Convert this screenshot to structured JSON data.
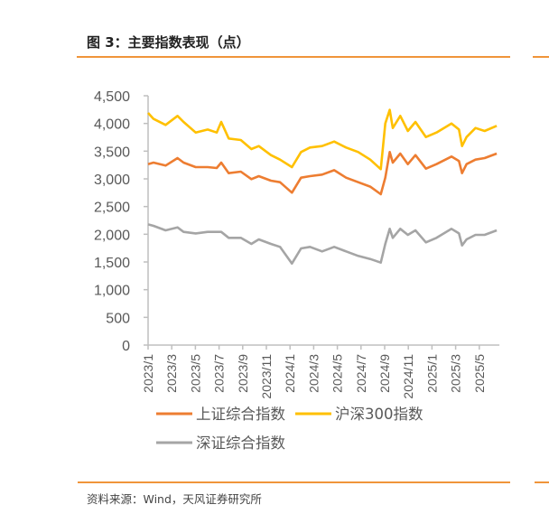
{
  "figure": {
    "title": "图 3：主要指数表现（点）",
    "source": "资料来源：Wind，天风证券研究所"
  },
  "chart_data": {
    "type": "line",
    "title": "主要指数表现（点）",
    "xlabel": "",
    "ylabel": "",
    "x_unit": "months since 2023/1",
    "ylim": [
      0,
      4500
    ],
    "yticks": [
      "0",
      "500",
      "1,000",
      "1,500",
      "2,000",
      "2,500",
      "3,000",
      "3,500",
      "4,000",
      "4,500"
    ],
    "ytick_values": [
      0,
      500,
      1000,
      1500,
      2000,
      2500,
      3000,
      3500,
      4000,
      4500
    ],
    "xticks": [
      "2023/1",
      "2023/3",
      "2023/5",
      "2023/7",
      "2023/9",
      "2023/11",
      "2024/1",
      "2024/3",
      "2024/5",
      "2024/7",
      "2024/9",
      "2024/11",
      "2025/1",
      "2025/3",
      "2025/5"
    ],
    "xtick_values": [
      0,
      2,
      4,
      6,
      8,
      10,
      12,
      14,
      16,
      18,
      20,
      22,
      24,
      26,
      28
    ],
    "xlim": [
      0,
      30
    ],
    "grid": false,
    "legend_placement": "bottom",
    "x": [
      0,
      0.46,
      1.48,
      2.49,
      3.0,
      4.02,
      5.04,
      5.8,
      6.18,
      6.82,
      7.84,
      8.73,
      9.36,
      10.38,
      11.15,
      12.16,
      12.93,
      13.69,
      14.71,
      15.73,
      16.74,
      17.76,
      18.78,
      19.67,
      20.05,
      20.43,
      20.69,
      21.32,
      21.96,
      22.6,
      23.49,
      24.38,
      25.65,
      26.28,
      26.54,
      26.92,
      27.68,
      28.45,
      29.47
    ],
    "series": [
      {
        "name": "上证综合指数",
        "color": "#ed7d31",
        "values": [
          3266,
          3293,
          3239,
          3375,
          3293,
          3212,
          3212,
          3196,
          3293,
          3103,
          3130,
          2995,
          3049,
          2967,
          2940,
          2750,
          3022,
          3049,
          3076,
          3157,
          3022,
          2940,
          2859,
          2723,
          3022,
          3484,
          3293,
          3456,
          3266,
          3429,
          3185,
          3266,
          3402,
          3321,
          3103,
          3266,
          3348,
          3375,
          3456
        ]
      },
      {
        "name": "沪深300指数",
        "color": "#ffc000",
        "values": [
          4190,
          4082,
          3973,
          4136,
          4027,
          3837,
          3891,
          3837,
          4027,
          3728,
          3701,
          3538,
          3592,
          3429,
          3348,
          3212,
          3484,
          3565,
          3592,
          3674,
          3565,
          3484,
          3348,
          3174,
          4000,
          4245,
          3918,
          4136,
          3864,
          4027,
          3755,
          3837,
          4000,
          3891,
          3592,
          3755,
          3918,
          3864,
          3957
        ]
      },
      {
        "name": "深证综合指数",
        "color": "#a5a5a5",
        "values": [
          2179,
          2152,
          2071,
          2125,
          2043,
          2016,
          2043,
          2043,
          2043,
          1935,
          1935,
          1826,
          1907,
          1826,
          1772,
          1473,
          1745,
          1772,
          1690,
          1772,
          1690,
          1609,
          1554,
          1489,
          1826,
          2098,
          1935,
          2098,
          1989,
          2071,
          1853,
          1935,
          2098,
          2016,
          1799,
          1907,
          1989,
          1989,
          2071
        ]
      }
    ]
  }
}
